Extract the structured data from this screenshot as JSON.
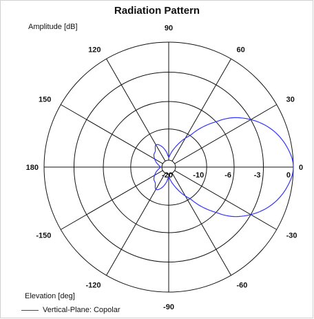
{
  "chart_data": {
    "type": "polar-line",
    "title": "Radiation Pattern",
    "radial_label": "Amplitude [dB]",
    "angular_label": "Elevation [deg]",
    "radial_ticks": [
      "-20",
      "-10",
      "-6",
      "-3",
      "0"
    ],
    "radial_tick_values": [
      -20,
      -10,
      -6,
      -3,
      0
    ],
    "angular_ticks": [
      "0",
      "30",
      "60",
      "90",
      "120",
      "150",
      "180",
      "-150",
      "-120",
      "-90",
      "-60",
      "-30"
    ],
    "angular_tick_values": [
      0,
      30,
      60,
      90,
      120,
      150,
      180,
      -150,
      -120,
      -90,
      -60,
      -30
    ],
    "grid": true,
    "legend_position": "bottom-left",
    "series": [
      {
        "name": "Vertical-Plane: Copolar",
        "color": "#3333ff",
        "angles_deg": [
          0,
          10,
          20,
          30,
          40,
          50,
          60,
          70,
          80,
          90,
          100,
          110,
          120,
          130,
          140,
          150,
          160,
          170,
          180,
          -170,
          -160,
          -150,
          -140,
          -130,
          -120,
          -110,
          -100,
          -90,
          -80,
          -70,
          -60,
          -50,
          -40,
          -30,
          -20,
          -10
        ],
        "values_db": [
          0,
          -0.5,
          -1.5,
          -3,
          -5,
          -8,
          -11.5,
          -15,
          -17.5,
          -19,
          -17,
          -15,
          -14,
          -15.5,
          -16,
          -17,
          -18,
          -19,
          -19.5,
          -19,
          -18,
          -17,
          -16,
          -15.5,
          -14,
          -15,
          -17,
          -19,
          -17.5,
          -15,
          -11.5,
          -8,
          -5,
          -3,
          -1.5,
          -0.5
        ]
      }
    ]
  }
}
